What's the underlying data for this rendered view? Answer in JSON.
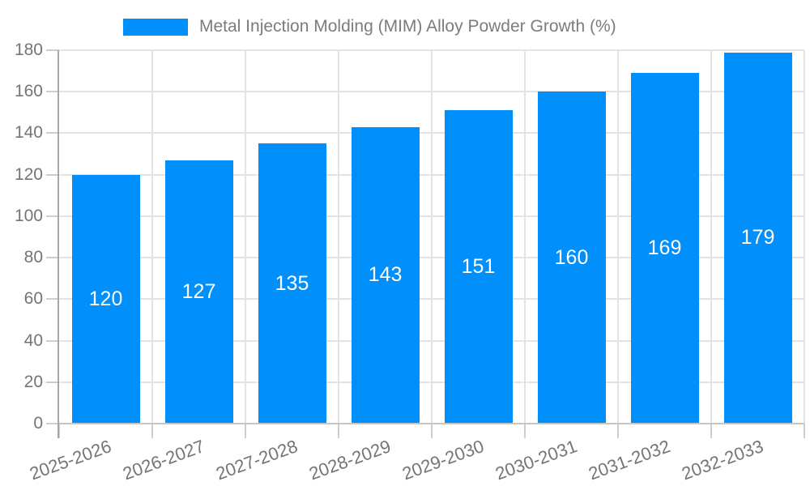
{
  "chart_data": {
    "type": "bar",
    "title": "Metal Injection Molding (MIM) Alloy Powder Growth (%)",
    "categories": [
      "2025-2026",
      "2026-2027",
      "2027-2028",
      "2028-2029",
      "2029-2030",
      "2030-2031",
      "2031-2032",
      "2032-2033"
    ],
    "values": [
      120,
      127,
      135,
      143,
      151,
      160,
      169,
      179
    ],
    "xlabel": "",
    "ylabel": "",
    "ylim": [
      0,
      180
    ],
    "ytick_step": 20,
    "yticks": [
      0,
      20,
      40,
      60,
      80,
      100,
      120,
      140,
      160,
      180
    ],
    "grid": true,
    "legend_position": "top",
    "value_labels_position": "inside-center",
    "x_label_rotation_deg": -20
  },
  "colors": {
    "bar": "#008FFB",
    "value_text": "#FFFFFF",
    "gridline": "#E3E3E3",
    "tick": "#CDCDCD",
    "y_axis_line": "#A6A6A6",
    "x_axis_line": "#C6C6C6",
    "axis_text": "#757575",
    "legend_text": "#7C7C7C",
    "background": "#FFFFFF"
  }
}
